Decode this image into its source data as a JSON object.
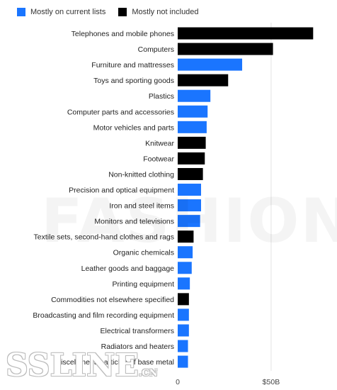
{
  "chart_data": {
    "type": "bar",
    "orientation": "horizontal",
    "title": "",
    "xlabel": "",
    "ylabel": "",
    "xlim": [
      0,
      72
    ],
    "x_unit": "$ billion",
    "grid": true,
    "legend_position": "top-left",
    "legend": [
      {
        "name": "Mostly on current lists",
        "color": "#1a75ff"
      },
      {
        "name": "Mostly not included",
        "color": "#000000"
      }
    ],
    "x_ticks": [
      {
        "value": 0,
        "label": "0"
      },
      {
        "value": 50,
        "label": "$50B"
      }
    ],
    "categories": [
      "Telephones and mobile phones",
      "Computers",
      "Furniture and mattresses",
      "Toys and sporting goods",
      "Plastics",
      "Computer parts and accessories",
      "Motor vehicles and parts",
      "Knitwear",
      "Footwear",
      "Non-knitted clothing",
      "Precision and optical equipment",
      "Iron and steel items",
      "Monitors and televisions",
      "Textile sets, second-hand clothes and rags",
      "Organic chemicals",
      "Leather goods and baggage",
      "Printing equipment",
      "Commodities not elsewhere specified",
      "Broadcasting and film recording equipment",
      "Electrical transformers",
      "Radiators and heaters",
      "Miscellaneous articles of base metal"
    ],
    "values": [
      72.5,
      51,
      34.5,
      27,
      17.5,
      16,
      15.5,
      15,
      14.5,
      13.5,
      12.5,
      12.5,
      12,
      8.5,
      8,
      7.5,
      6.5,
      6,
      6,
      6,
      5.5,
      5.5
    ],
    "groups": [
      "Mostly not included",
      "Mostly not included",
      "Mostly on current lists",
      "Mostly not included",
      "Mostly on current lists",
      "Mostly on current lists",
      "Mostly on current lists",
      "Mostly not included",
      "Mostly not included",
      "Mostly not included",
      "Mostly on current lists",
      "Mostly on current lists",
      "Mostly on current lists",
      "Mostly not included",
      "Mostly on current lists",
      "Mostly on current lists",
      "Mostly on current lists",
      "Mostly not included",
      "Mostly on current lists",
      "Mostly on current lists",
      "Mostly on current lists",
      "Mostly on current lists"
    ]
  },
  "watermarks": {
    "primary": "FASHION",
    "secondary": "SSLINE",
    "secondary_suffix": ".CN"
  }
}
